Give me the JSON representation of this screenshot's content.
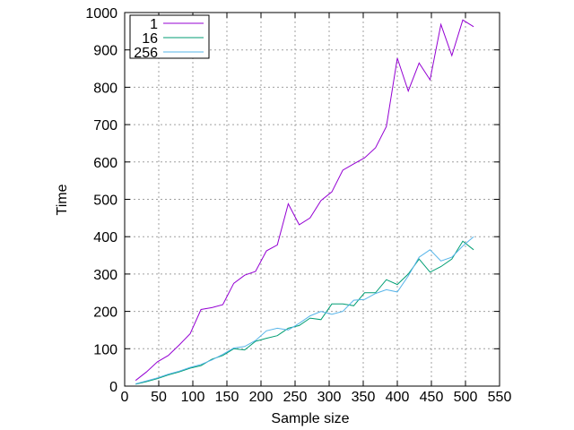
{
  "chart_data": {
    "type": "line",
    "xlabel": "Sample size",
    "ylabel": "Time",
    "xlim": [
      0,
      550
    ],
    "ylim": [
      0,
      1000
    ],
    "xticks": [
      0,
      50,
      100,
      150,
      200,
      250,
      300,
      350,
      400,
      450,
      500,
      550
    ],
    "yticks": [
      0,
      100,
      200,
      300,
      400,
      500,
      600,
      700,
      800,
      900,
      1000
    ],
    "grid": true,
    "legend_position": "top-left",
    "x": [
      16,
      32,
      48,
      64,
      80,
      96,
      112,
      128,
      144,
      160,
      176,
      192,
      208,
      224,
      240,
      256,
      272,
      288,
      304,
      320,
      336,
      352,
      368,
      384,
      400,
      416,
      432,
      448,
      464,
      480,
      496,
      512
    ],
    "series": [
      {
        "name": "1",
        "color": "#9400d3",
        "values": [
          15,
          38,
          65,
          82,
          110,
          140,
          205,
          210,
          218,
          275,
          297,
          307,
          362,
          378,
          488,
          432,
          450,
          497,
          520,
          578,
          595,
          611,
          638,
          695,
          878,
          790,
          865,
          820,
          968,
          885,
          980,
          962
        ]
      },
      {
        "name": "16",
        "color": "#009e73",
        "values": [
          5,
          12,
          20,
          30,
          38,
          48,
          55,
          72,
          82,
          100,
          97,
          120,
          128,
          135,
          155,
          162,
          182,
          178,
          220,
          220,
          215,
          250,
          250,
          285,
          272,
          300,
          340,
          305,
          320,
          340,
          388,
          365
        ]
      },
      {
        "name": "256",
        "color": "#56b4e9",
        "values": [
          6,
          14,
          22,
          32,
          40,
          50,
          58,
          70,
          85,
          102,
          106,
          122,
          148,
          155,
          150,
          168,
          188,
          200,
          192,
          200,
          230,
          232,
          248,
          258,
          252,
          295,
          345,
          365,
          335,
          345,
          375,
          400
        ]
      }
    ]
  }
}
